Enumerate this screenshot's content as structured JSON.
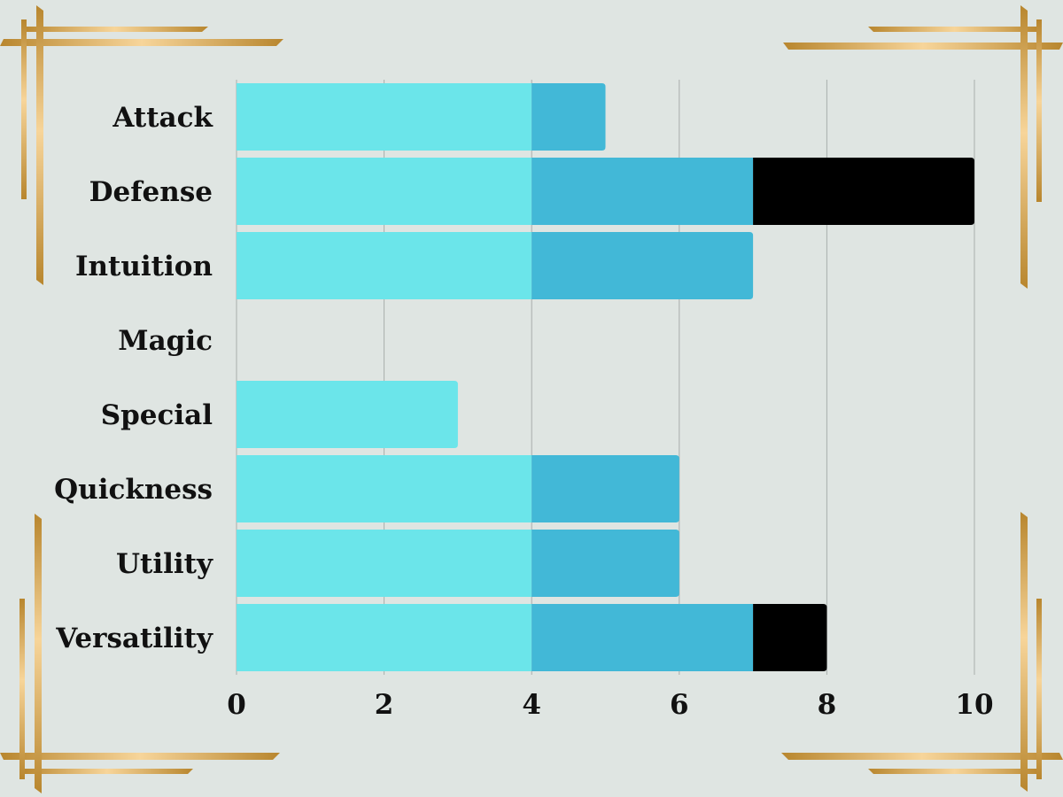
{
  "chart_data": {
    "type": "bar",
    "orientation": "horizontal",
    "stacked": true,
    "title": "",
    "xlabel": "",
    "ylabel": "",
    "categories": [
      "Attack",
      "Defense",
      "Intuition",
      "Magic",
      "Special",
      "Quickness",
      "Utility",
      "Versatility"
    ],
    "series": [
      {
        "values": [
          4,
          4,
          4,
          0,
          3,
          4,
          4,
          4
        ],
        "color": "#6be5ea"
      },
      {
        "values": [
          1,
          3,
          3,
          0,
          0,
          2,
          2,
          3
        ],
        "color": "#42b8d7"
      },
      {
        "values": [
          0,
          3,
          0,
          0,
          0,
          0,
          0,
          1
        ],
        "color": "#000000"
      }
    ],
    "xlim": [
      0,
      10
    ],
    "xticks": [
      "0",
      "2",
      "4",
      "6",
      "8",
      "10"
    ],
    "grid": true,
    "legend": "none"
  },
  "colors": {
    "background": "#dfe5e2",
    "gridline": "#a9aeac",
    "frame_gold": "#d9a441",
    "frame_highlight": "#f7d59a"
  }
}
